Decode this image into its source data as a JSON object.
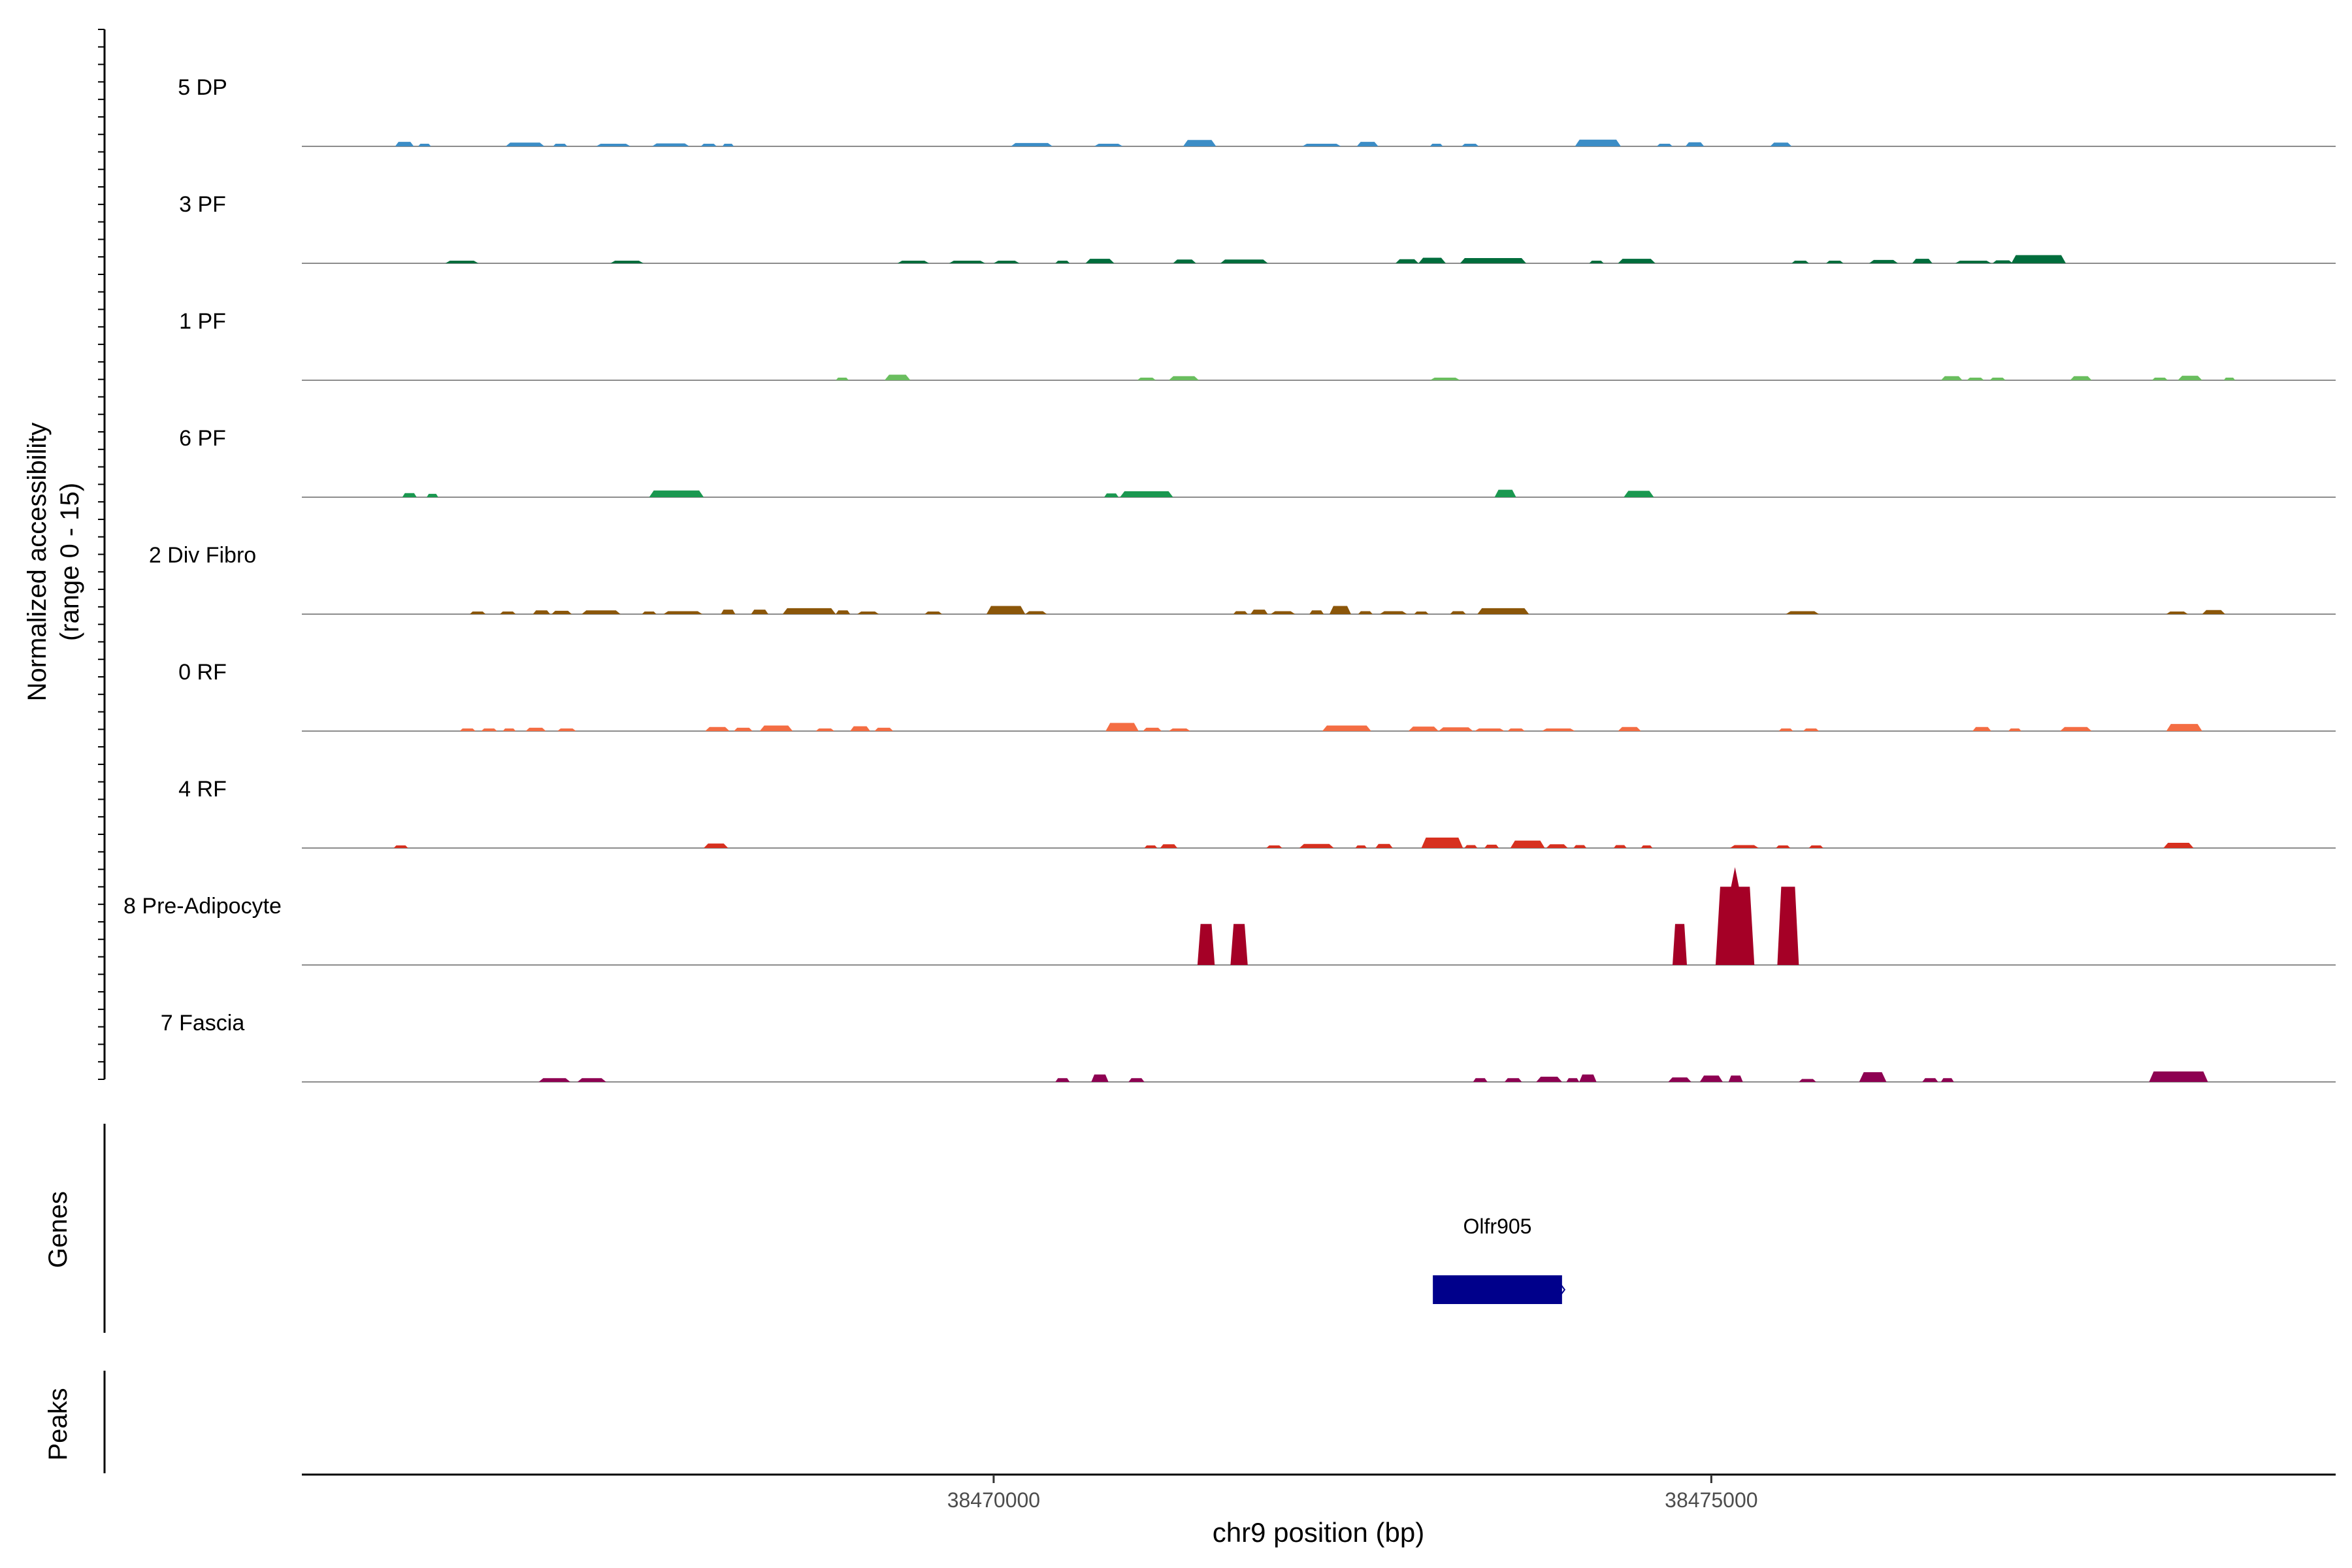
{
  "chart_data": {
    "type": "area",
    "title": "",
    "ylabel_line1": "Normalized accessibility",
    "ylabel_line2": "(range 0 - 15)",
    "yrange": [
      0,
      15
    ],
    "xlabel": "chr9 position (bp)",
    "xlim": [
      38465180,
      38479350
    ],
    "xticks": [
      38470000,
      38475000
    ],
    "xtick_labels": [
      "38470000",
      "38475000"
    ],
    "tracks": [
      {
        "name": "5 DP",
        "color": "#3C8DC6",
        "peaks": [
          {
            "start": 38465830,
            "end": 38465960,
            "height": 0.6
          },
          {
            "start": 38465990,
            "end": 38466080,
            "height": 0.35
          },
          {
            "start": 38466600,
            "end": 38466870,
            "height": 0.5
          },
          {
            "start": 38466930,
            "end": 38467030,
            "height": 0.35
          },
          {
            "start": 38467230,
            "end": 38467470,
            "height": 0.35
          },
          {
            "start": 38467620,
            "end": 38467880,
            "height": 0.4
          },
          {
            "start": 38467960,
            "end": 38468070,
            "height": 0.35
          },
          {
            "start": 38468110,
            "end": 38468190,
            "height": 0.3
          },
          {
            "start": 38470120,
            "end": 38470410,
            "height": 0.45
          },
          {
            "start": 38470700,
            "end": 38470900,
            "height": 0.35
          },
          {
            "start": 38471320,
            "end": 38471550,
            "height": 0.85
          },
          {
            "start": 38472150,
            "end": 38472420,
            "height": 0.35
          },
          {
            "start": 38472530,
            "end": 38472680,
            "height": 0.6
          },
          {
            "start": 38473040,
            "end": 38473130,
            "height": 0.3
          },
          {
            "start": 38473260,
            "end": 38473380,
            "height": 0.35
          },
          {
            "start": 38474050,
            "end": 38474370,
            "height": 0.9
          },
          {
            "start": 38474620,
            "end": 38474730,
            "height": 0.35
          },
          {
            "start": 38474820,
            "end": 38474950,
            "height": 0.55
          },
          {
            "start": 38475410,
            "end": 38475560,
            "height": 0.5
          }
        ]
      },
      {
        "name": "3 PF",
        "color": "#006D3C",
        "peaks": [
          {
            "start": 38466180,
            "end": 38466410,
            "height": 0.3
          },
          {
            "start": 38467330,
            "end": 38467560,
            "height": 0.3
          },
          {
            "start": 38469330,
            "end": 38469550,
            "height": 0.3
          },
          {
            "start": 38469690,
            "end": 38469940,
            "height": 0.3
          },
          {
            "start": 38470000,
            "end": 38470180,
            "height": 0.3
          },
          {
            "start": 38470430,
            "end": 38470530,
            "height": 0.35
          },
          {
            "start": 38470640,
            "end": 38470840,
            "height": 0.6
          },
          {
            "start": 38471250,
            "end": 38471410,
            "height": 0.5
          },
          {
            "start": 38471580,
            "end": 38471910,
            "height": 0.5
          },
          {
            "start": 38472800,
            "end": 38472960,
            "height": 0.55
          },
          {
            "start": 38472960,
            "end": 38473150,
            "height": 0.75
          },
          {
            "start": 38473250,
            "end": 38473710,
            "height": 0.7
          },
          {
            "start": 38474150,
            "end": 38474250,
            "height": 0.35
          },
          {
            "start": 38474350,
            "end": 38474610,
            "height": 0.6
          },
          {
            "start": 38475560,
            "end": 38475680,
            "height": 0.35
          },
          {
            "start": 38475800,
            "end": 38475920,
            "height": 0.35
          },
          {
            "start": 38476100,
            "end": 38476300,
            "height": 0.45
          },
          {
            "start": 38476400,
            "end": 38476540,
            "height": 0.6
          },
          {
            "start": 38476700,
            "end": 38476950,
            "height": 0.35
          },
          {
            "start": 38476960,
            "end": 38477100,
            "height": 0.4
          },
          {
            "start": 38477090,
            "end": 38477470,
            "height": 1.1
          }
        ]
      },
      {
        "name": "1 PF",
        "color": "#6ABE5F",
        "peaks": [
          {
            "start": 38468900,
            "end": 38468990,
            "height": 0.35
          },
          {
            "start": 38469240,
            "end": 38469420,
            "height": 0.75
          },
          {
            "start": 38471000,
            "end": 38471130,
            "height": 0.35
          },
          {
            "start": 38471220,
            "end": 38471430,
            "height": 0.55
          },
          {
            "start": 38473040,
            "end": 38473250,
            "height": 0.35
          },
          {
            "start": 38476600,
            "end": 38476750,
            "height": 0.55
          },
          {
            "start": 38476780,
            "end": 38476900,
            "height": 0.3
          },
          {
            "start": 38476940,
            "end": 38477050,
            "height": 0.3
          },
          {
            "start": 38477500,
            "end": 38477650,
            "height": 0.55
          },
          {
            "start": 38478070,
            "end": 38478180,
            "height": 0.35
          },
          {
            "start": 38478250,
            "end": 38478420,
            "height": 0.6
          },
          {
            "start": 38478570,
            "end": 38478650,
            "height": 0.3
          }
        ]
      },
      {
        "name": "6 PF",
        "color": "#1A9850",
        "peaks": [
          {
            "start": 38465880,
            "end": 38465980,
            "height": 0.55
          },
          {
            "start": 38466050,
            "end": 38466130,
            "height": 0.45
          },
          {
            "start": 38467600,
            "end": 38467980,
            "height": 0.9
          },
          {
            "start": 38470770,
            "end": 38470870,
            "height": 0.5
          },
          {
            "start": 38470880,
            "end": 38471250,
            "height": 0.8
          },
          {
            "start": 38473490,
            "end": 38473640,
            "height": 1.0
          },
          {
            "start": 38474390,
            "end": 38474600,
            "height": 0.85
          }
        ]
      },
      {
        "name": "2 Div Fibro",
        "color": "#8B5609",
        "peaks": [
          {
            "start": 38466350,
            "end": 38466460,
            "height": 0.35
          },
          {
            "start": 38466560,
            "end": 38466670,
            "height": 0.35
          },
          {
            "start": 38466790,
            "end": 38466910,
            "height": 0.5
          },
          {
            "start": 38466920,
            "end": 38467060,
            "height": 0.45
          },
          {
            "start": 38467130,
            "end": 38467400,
            "height": 0.5
          },
          {
            "start": 38467550,
            "end": 38467650,
            "height": 0.35
          },
          {
            "start": 38467700,
            "end": 38467970,
            "height": 0.4
          },
          {
            "start": 38468100,
            "end": 38468200,
            "height": 0.6
          },
          {
            "start": 38468310,
            "end": 38468430,
            "height": 0.6
          },
          {
            "start": 38468530,
            "end": 38468900,
            "height": 0.8
          },
          {
            "start": 38468900,
            "end": 38469000,
            "height": 0.5
          },
          {
            "start": 38469050,
            "end": 38469200,
            "height": 0.35
          },
          {
            "start": 38469520,
            "end": 38469640,
            "height": 0.35
          },
          {
            "start": 38469950,
            "end": 38470220,
            "height": 1.1
          },
          {
            "start": 38470220,
            "end": 38470370,
            "height": 0.4
          },
          {
            "start": 38471670,
            "end": 38471770,
            "height": 0.4
          },
          {
            "start": 38471790,
            "end": 38471910,
            "height": 0.6
          },
          {
            "start": 38471930,
            "end": 38472100,
            "height": 0.4
          },
          {
            "start": 38472200,
            "end": 38472300,
            "height": 0.5
          },
          {
            "start": 38472340,
            "end": 38472490,
            "height": 1.1
          },
          {
            "start": 38472540,
            "end": 38472640,
            "height": 0.4
          },
          {
            "start": 38472690,
            "end": 38472880,
            "height": 0.4
          },
          {
            "start": 38472930,
            "end": 38473030,
            "height": 0.3
          },
          {
            "start": 38473180,
            "end": 38473290,
            "height": 0.4
          },
          {
            "start": 38473370,
            "end": 38473730,
            "height": 0.8
          },
          {
            "start": 38475520,
            "end": 38475750,
            "height": 0.4
          },
          {
            "start": 38478170,
            "end": 38478320,
            "height": 0.35
          },
          {
            "start": 38478420,
            "end": 38478580,
            "height": 0.55
          }
        ]
      },
      {
        "name": "0 RF",
        "color": "#F46D43",
        "peaks": [
          {
            "start": 38466280,
            "end": 38466390,
            "height": 0.3
          },
          {
            "start": 38466430,
            "end": 38466540,
            "height": 0.3
          },
          {
            "start": 38466580,
            "end": 38466670,
            "height": 0.3
          },
          {
            "start": 38466740,
            "end": 38466880,
            "height": 0.45
          },
          {
            "start": 38466960,
            "end": 38467090,
            "height": 0.35
          },
          {
            "start": 38467990,
            "end": 38468160,
            "height": 0.55
          },
          {
            "start": 38468190,
            "end": 38468320,
            "height": 0.45
          },
          {
            "start": 38468370,
            "end": 38468600,
            "height": 0.75
          },
          {
            "start": 38468760,
            "end": 38468890,
            "height": 0.35
          },
          {
            "start": 38469000,
            "end": 38469140,
            "height": 0.65
          },
          {
            "start": 38469170,
            "end": 38469300,
            "height": 0.45
          },
          {
            "start": 38470780,
            "end": 38471010,
            "height": 1.1
          },
          {
            "start": 38471040,
            "end": 38471170,
            "height": 0.45
          },
          {
            "start": 38471220,
            "end": 38471370,
            "height": 0.35
          },
          {
            "start": 38472290,
            "end": 38472630,
            "height": 0.75
          },
          {
            "start": 38472890,
            "end": 38473100,
            "height": 0.6
          },
          {
            "start": 38473100,
            "end": 38473340,
            "height": 0.5
          },
          {
            "start": 38473350,
            "end": 38473560,
            "height": 0.35
          },
          {
            "start": 38473580,
            "end": 38473700,
            "height": 0.35
          },
          {
            "start": 38473820,
            "end": 38474050,
            "height": 0.35
          },
          {
            "start": 38474350,
            "end": 38474510,
            "height": 0.55
          },
          {
            "start": 38475470,
            "end": 38475570,
            "height": 0.35
          },
          {
            "start": 38475640,
            "end": 38475750,
            "height": 0.35
          },
          {
            "start": 38476820,
            "end": 38476950,
            "height": 0.55
          },
          {
            "start": 38477070,
            "end": 38477160,
            "height": 0.35
          },
          {
            "start": 38477430,
            "end": 38477650,
            "height": 0.55
          },
          {
            "start": 38478170,
            "end": 38478420,
            "height": 0.95
          }
        ]
      },
      {
        "name": "4 RF",
        "color": "#D7301F",
        "peaks": [
          {
            "start": 38465820,
            "end": 38465920,
            "height": 0.35
          },
          {
            "start": 38467980,
            "end": 38468150,
            "height": 0.6
          },
          {
            "start": 38471050,
            "end": 38471140,
            "height": 0.35
          },
          {
            "start": 38471160,
            "end": 38471280,
            "height": 0.5
          },
          {
            "start": 38471900,
            "end": 38472010,
            "height": 0.35
          },
          {
            "start": 38472130,
            "end": 38472370,
            "height": 0.55
          },
          {
            "start": 38472520,
            "end": 38472600,
            "height": 0.35
          },
          {
            "start": 38472660,
            "end": 38472780,
            "height": 0.55
          },
          {
            "start": 38472980,
            "end": 38473270,
            "height": 1.4
          },
          {
            "start": 38473280,
            "end": 38473370,
            "height": 0.4
          },
          {
            "start": 38473420,
            "end": 38473520,
            "height": 0.45
          },
          {
            "start": 38473600,
            "end": 38473840,
            "height": 1.0
          },
          {
            "start": 38473850,
            "end": 38474000,
            "height": 0.5
          },
          {
            "start": 38474040,
            "end": 38474130,
            "height": 0.4
          },
          {
            "start": 38474320,
            "end": 38474410,
            "height": 0.4
          },
          {
            "start": 38474510,
            "end": 38474590,
            "height": 0.35
          },
          {
            "start": 38475130,
            "end": 38475330,
            "height": 0.4
          },
          {
            "start": 38475450,
            "end": 38475550,
            "height": 0.35
          },
          {
            "start": 38475680,
            "end": 38475780,
            "height": 0.35
          },
          {
            "start": 38478150,
            "end": 38478360,
            "height": 0.7
          }
        ]
      },
      {
        "name": "8 Pre-Adipocyte",
        "color": "#A50026",
        "peaks": [
          {
            "start": 38471420,
            "end": 38471540,
            "height": 5.5
          },
          {
            "start": 38471650,
            "end": 38471770,
            "height": 5.5
          },
          {
            "start": 38474730,
            "end": 38474830,
            "height": 5.5
          },
          {
            "start": 38475030,
            "end": 38475300,
            "height": 10.5
          },
          {
            "start": 38475460,
            "end": 38475610,
            "height": 10.5
          }
        ]
      },
      {
        "name": "7 Fascia",
        "color": "#8E0152",
        "peaks": [
          {
            "start": 38466830,
            "end": 38467050,
            "height": 0.5
          },
          {
            "start": 38467100,
            "end": 38467300,
            "height": 0.5
          },
          {
            "start": 38470430,
            "end": 38470530,
            "height": 0.5
          },
          {
            "start": 38470680,
            "end": 38470800,
            "height": 1.0
          },
          {
            "start": 38470940,
            "end": 38471050,
            "height": 0.5
          },
          {
            "start": 38473340,
            "end": 38473440,
            "height": 0.5
          },
          {
            "start": 38473560,
            "end": 38473680,
            "height": 0.5
          },
          {
            "start": 38473780,
            "end": 38473960,
            "height": 0.7
          },
          {
            "start": 38473990,
            "end": 38474080,
            "height": 0.5
          },
          {
            "start": 38474080,
            "end": 38474200,
            "height": 1.0
          },
          {
            "start": 38474700,
            "end": 38474860,
            "height": 0.6
          },
          {
            "start": 38474920,
            "end": 38475080,
            "height": 0.85
          },
          {
            "start": 38475120,
            "end": 38475220,
            "height": 0.85
          },
          {
            "start": 38475610,
            "end": 38475730,
            "height": 0.4
          },
          {
            "start": 38476030,
            "end": 38476220,
            "height": 1.3
          },
          {
            "start": 38476470,
            "end": 38476580,
            "height": 0.5
          },
          {
            "start": 38476600,
            "end": 38476690,
            "height": 0.5
          },
          {
            "start": 38478050,
            "end": 38478460,
            "height": 1.4
          }
        ]
      }
    ],
    "genes_panel_label": "Genes",
    "genes": [
      {
        "name": "Olfr905",
        "start": 38473060,
        "end": 38473960,
        "color": "#00008B"
      }
    ],
    "peaks_panel_label": "Peaks"
  }
}
